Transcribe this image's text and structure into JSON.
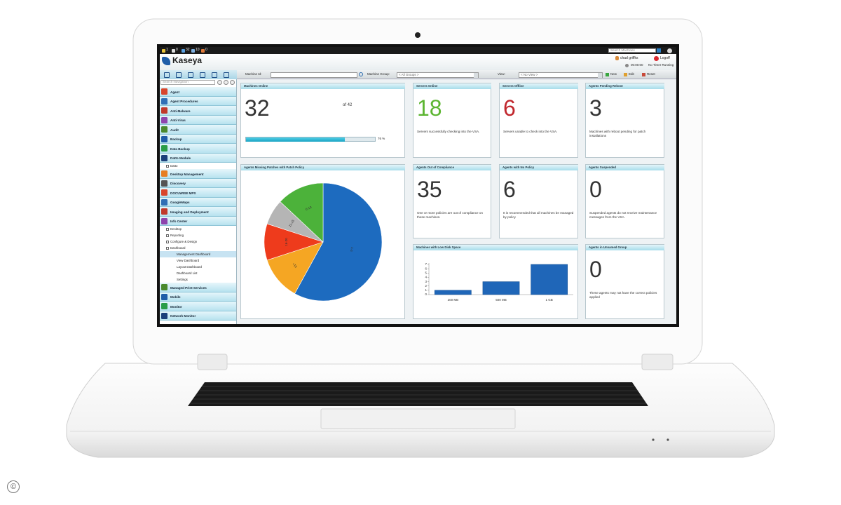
{
  "topbar": {
    "counters": [
      "1",
      "0",
      "32",
      "10",
      "0"
    ],
    "search_placeholder": "Search Machines"
  },
  "header": {
    "logo": "Kaseya",
    "user": "chad griffks",
    "logoff": "Logoff",
    "timer": "00:00:00",
    "timer_status": "No Timer Running"
  },
  "toolbar": {
    "machine_id_label": "Machine Id:",
    "machine_group_label": "Machine Group:",
    "machine_group_value": "< All Groups >",
    "view_label": "View:",
    "view_value": "< No View >",
    "buttons": [
      "New",
      "Edit",
      "Reset"
    ]
  },
  "navigation": {
    "search_placeholder": "Search Navigation",
    "items": [
      {
        "label": "Agent"
      },
      {
        "label": "Agent Procedures"
      },
      {
        "label": "Anti-Malware"
      },
      {
        "label": "Anti-Virus"
      },
      {
        "label": "Audit"
      },
      {
        "label": "Backup"
      },
      {
        "label": "Data Backup"
      },
      {
        "label": "Datto Module",
        "children": [
          {
            "label": "Datto"
          }
        ]
      },
      {
        "label": "Desktop Management"
      },
      {
        "label": "Discovery"
      },
      {
        "label": "DOCUWISE MPS"
      },
      {
        "label": "GoogleMaps"
      },
      {
        "label": "Imaging and Deployment"
      },
      {
        "label": "Info Center",
        "children": [
          {
            "label": "Desktop"
          },
          {
            "label": "Reporting"
          },
          {
            "label": "Configure & Design"
          },
          {
            "label": "Dashboard",
            "children": [
              {
                "label": "Management Dashboard",
                "selected": true
              },
              {
                "label": "View Dashboard"
              },
              {
                "label": "Layout Dashboard"
              },
              {
                "label": "Dashboard List"
              },
              {
                "label": "Settings"
              }
            ]
          }
        ]
      },
      {
        "label": "Managed Print Services"
      },
      {
        "label": "Mobile"
      },
      {
        "label": "Monitor"
      },
      {
        "label": "Network Monitor"
      }
    ]
  },
  "machines_online": {
    "title": "Machines Online",
    "value": 32,
    "total_label": "of 42",
    "progress": 76,
    "progress_label": "76 %"
  },
  "stat_panels": [
    {
      "title": "Servers Online",
      "value": 18,
      "color": "#5cb531",
      "description": "Servers successfully checking into the VSA."
    },
    {
      "title": "Servers Offline",
      "value": 6,
      "color": "#c1272d",
      "description": "Servers unable to check into the VSA."
    },
    {
      "title": "Agents Pending Reboot",
      "value": 3,
      "color": "#333333",
      "description": "Machines with reboot pending for patch installations"
    },
    {
      "title": "Agents Out of Compliance",
      "value": 35,
      "color": "#333333",
      "description": "One or more policies are out of compliance on these machines."
    },
    {
      "title": "Agents with No Policy",
      "value": 6,
      "color": "#333333",
      "description": "It is recommended that all machines be managed by policy"
    },
    {
      "title": "Agents Suspended",
      "value": 0,
      "color": "#333333",
      "description": "Suspended agents do not receive maintenance messages from the VSA."
    },
    {
      "title": "Agents in Unnamed Group",
      "value": 0,
      "color": "#333333",
      "description": "These agents may not have the correct policies applied"
    }
  ],
  "patch_chart": {
    "type": "pie",
    "title": "Agents Missing Patches with Patch Policy",
    "categories": [
      "1-5",
      "21+",
      "16-20",
      "11-15",
      "6-10"
    ],
    "values": [
      58,
      12,
      10,
      7,
      13
    ],
    "colors": [
      "#1d6bbf",
      "#f5a623",
      "#ee3b1c",
      "#b5b5b5",
      "#4cb23a"
    ]
  },
  "disk_chart": {
    "type": "bar",
    "title": "Machines with Low Disk Space",
    "categories": [
      "200 MB",
      "500 MB",
      "1 GB"
    ],
    "values": [
      1,
      3,
      7
    ],
    "color": "#1f66b8",
    "ylim": [
      0,
      7
    ],
    "yticks": [
      0,
      1,
      2,
      3,
      4,
      5,
      6,
      7
    ]
  },
  "copyright": "©"
}
